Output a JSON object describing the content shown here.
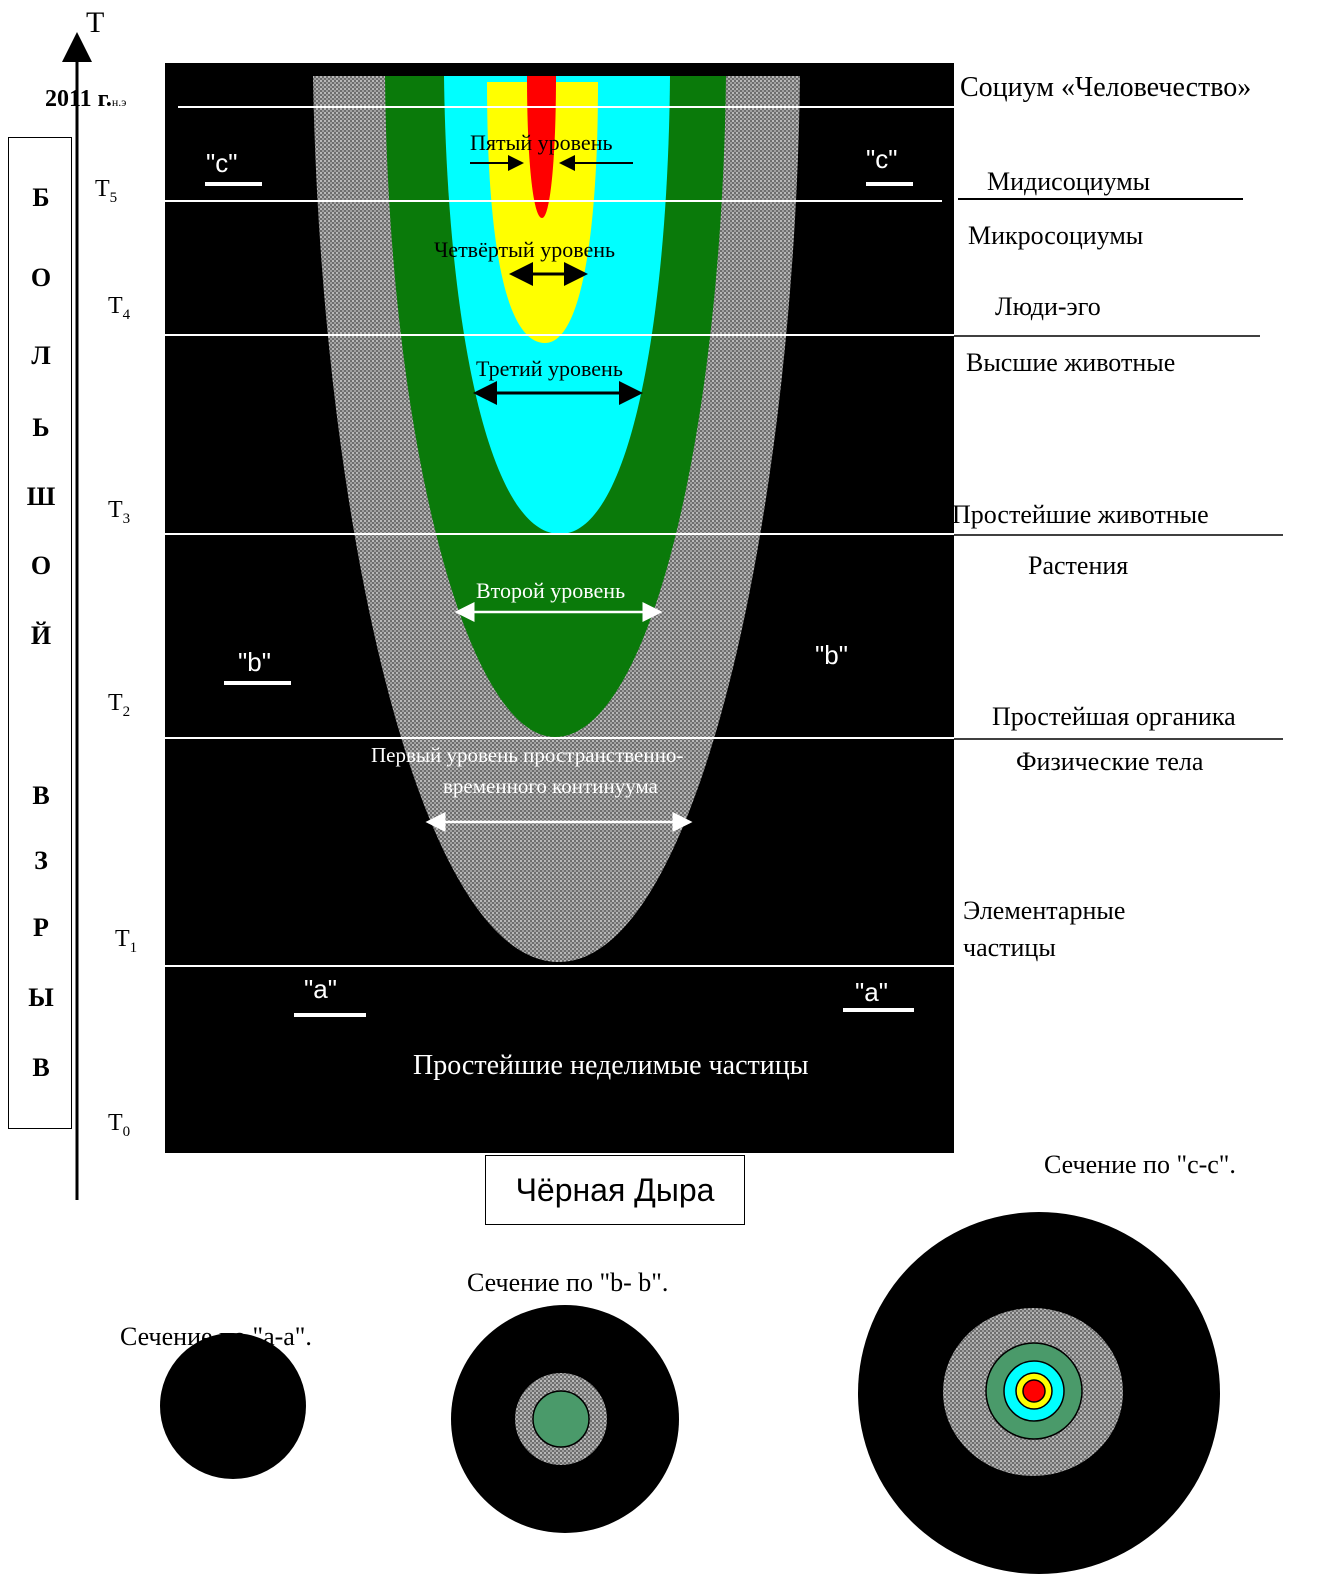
{
  "axis": {
    "label": "T",
    "year_label": "2011 г.",
    "year_suffix": "н.э"
  },
  "time_marks": [
    {
      "main": "T",
      "sub": "5"
    },
    {
      "main": "T",
      "sub": "4"
    },
    {
      "main": "T",
      "sub": "3"
    },
    {
      "main": "T",
      "sub": "2"
    },
    {
      "main": "T",
      "sub": "1"
    },
    {
      "main": "T",
      "sub": "0"
    }
  ],
  "big_bang_letters": [
    "Б",
    "О",
    "Л",
    "Ь",
    "Ш",
    "О",
    "Й",
    "В",
    "З",
    "Р",
    "Ы",
    "В"
  ],
  "levels": {
    "fifth": "Пятый уровень",
    "fourth": "Четвёртый уровень",
    "third": "Третий уровень",
    "second": "Второй уровень",
    "first_line1": "Первый уровень пространственно-",
    "first_line2": "временного континуума"
  },
  "cut_markers": {
    "c": "\"c\"",
    "b": "\"b\"",
    "a": "\"a\""
  },
  "base_text": "Простейшие неделимые частицы",
  "black_hole": "Чёрная Дыра",
  "right_labels": {
    "socium": "Социум «Человечество»",
    "midi": "Мидисоциумы",
    "micro": "Микросоциумы",
    "ego": "Люди-эго",
    "higher_animals": "Высшие животные",
    "simple_animals": "Простейшие животные",
    "plants": "Растения",
    "organic": "Простейшая органика",
    "physical": "Физические тела",
    "elem_line1": "Элементарные",
    "elem_line2": "частицы"
  },
  "sections": {
    "aa": "Сечение по \"а-а\".",
    "bb": "Сечение по \"b- b\".",
    "cc": "Сечение по \"с-с\"."
  },
  "colors": {
    "background": "#000000",
    "grey": "#8a8a8a",
    "green": "#0a7a0a",
    "cyan": "#00ffff",
    "yellow": "#ffff00",
    "red": "#ff0000",
    "section_green": "#4a9a6a"
  }
}
